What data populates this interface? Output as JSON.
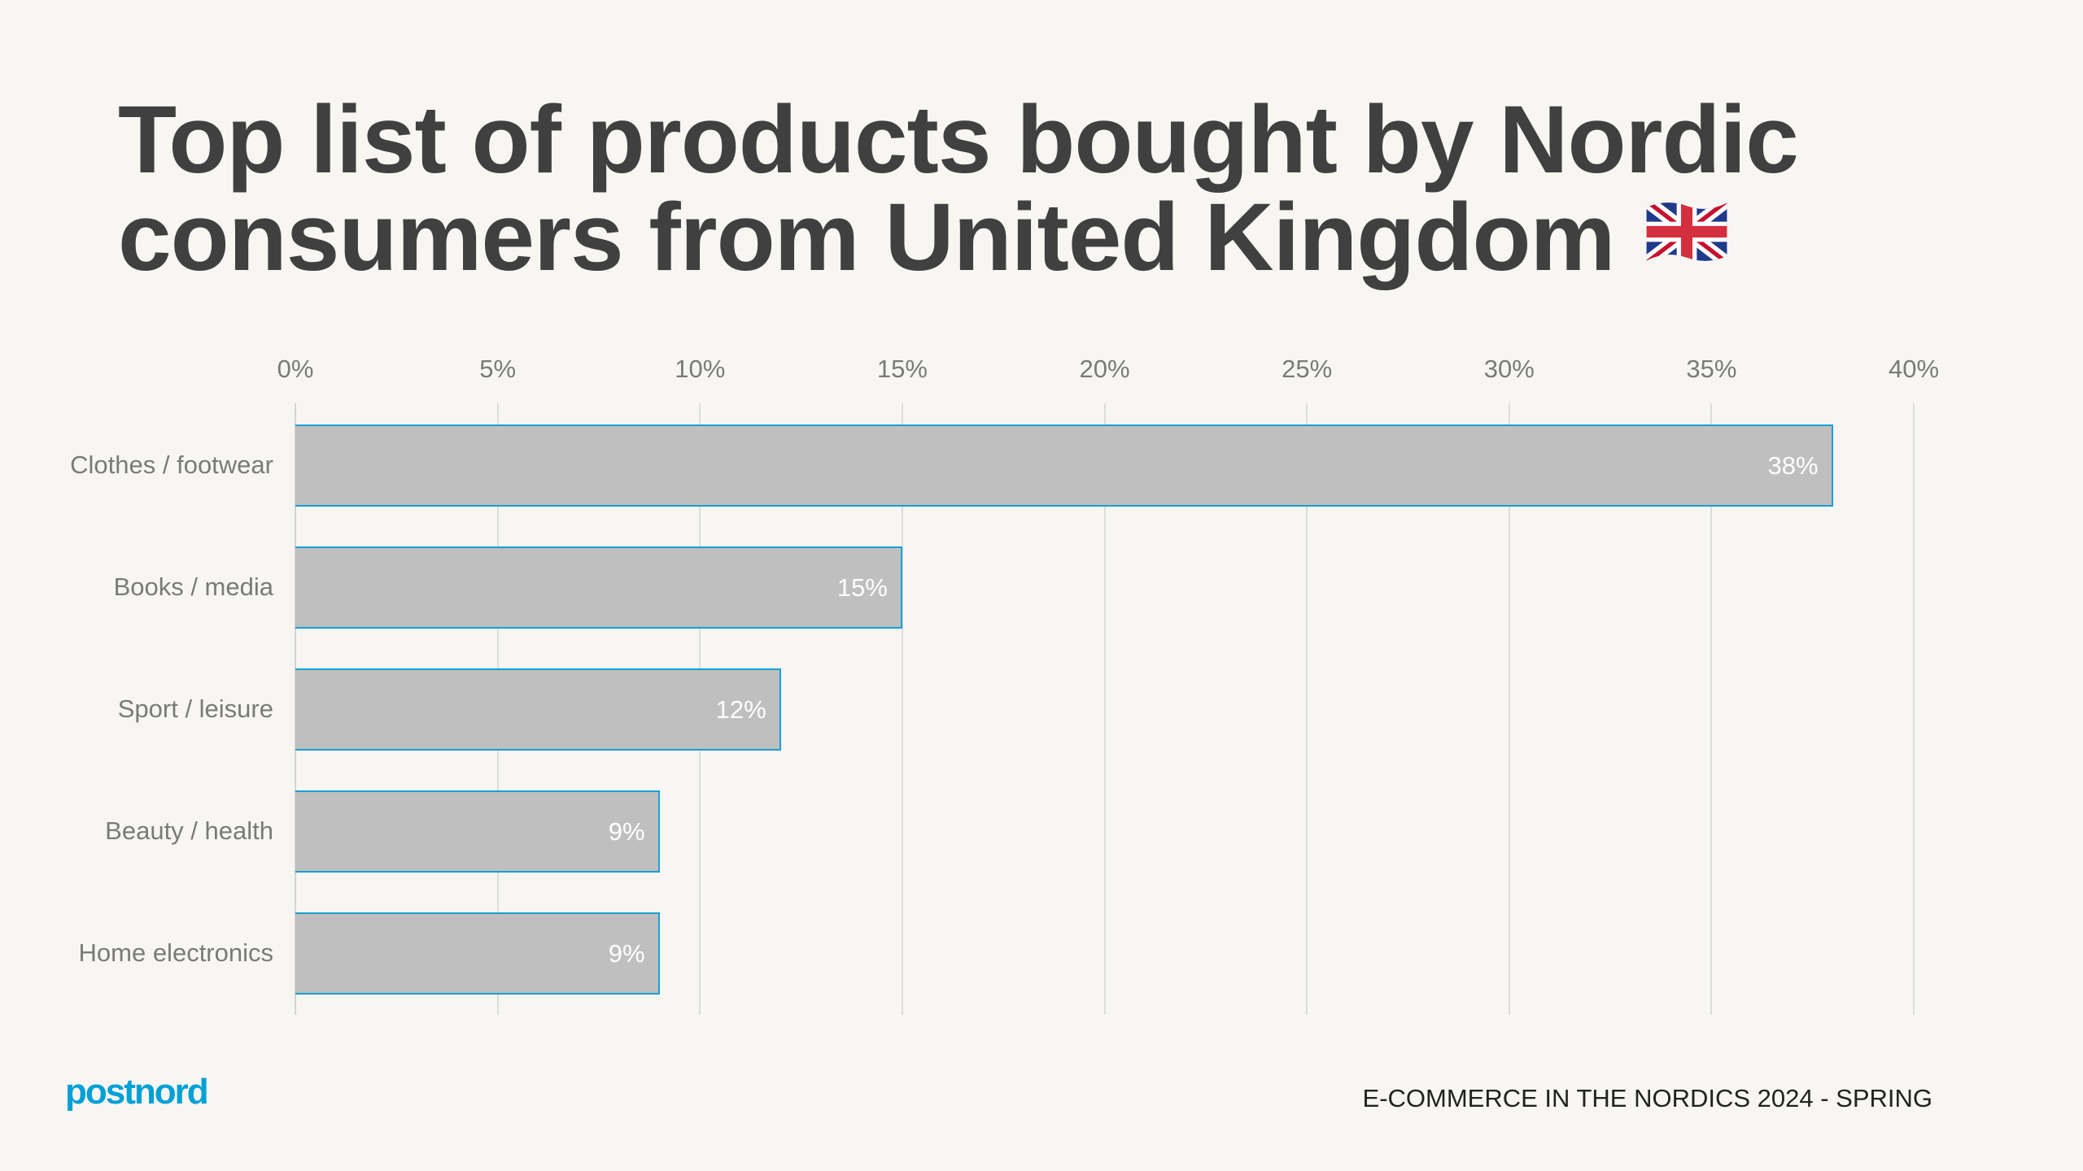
{
  "slide": {
    "title_line1": "Top list of products bought by Nordic",
    "title_line2": "consumers from United Kingdom",
    "title_icon": "uk-flag-icon",
    "logo": "postnord",
    "footer": "E-COMMERCE IN THE NORDICS 2024 - SPRING"
  },
  "colors": {
    "background": "#f7f6f2",
    "bar_fill": "#bfbfbf",
    "bar_border": "#1a9fd3",
    "title": "#404040",
    "logo": "#00a0d6"
  },
  "axis": {
    "ticks": [
      "0%",
      "5%",
      "10%",
      "15%",
      "20%",
      "25%",
      "30%",
      "35%",
      "40%"
    ]
  },
  "bars": [
    {
      "label": "Clothes / footwear",
      "value": 38,
      "display": "38%"
    },
    {
      "label": "Books / media",
      "value": 15,
      "display": "15%"
    },
    {
      "label": "Sport / leisure",
      "value": 12,
      "display": "12%"
    },
    {
      "label": "Beauty / health",
      "value": 9,
      "display": "9%"
    },
    {
      "label": "Home electronics",
      "value": 9,
      "display": "9%"
    }
  ],
  "chart_data": {
    "type": "bar",
    "orientation": "horizontal",
    "title": "Top list of products bought by Nordic consumers from United Kingdom",
    "categories": [
      "Clothes / footwear",
      "Books / media",
      "Sport / leisure",
      "Beauty / health",
      "Home electronics"
    ],
    "values": [
      38,
      15,
      12,
      9,
      9
    ],
    "value_labels": [
      "38%",
      "15%",
      "12%",
      "9%",
      "9%"
    ],
    "xlabel": "",
    "ylabel": "",
    "xlim": [
      0,
      40
    ],
    "x_ticks": [
      "0%",
      "5%",
      "10%",
      "15%",
      "20%",
      "25%",
      "30%",
      "35%",
      "40%"
    ],
    "x_axis_position": "top",
    "grid": "vertical",
    "legend": "none"
  }
}
